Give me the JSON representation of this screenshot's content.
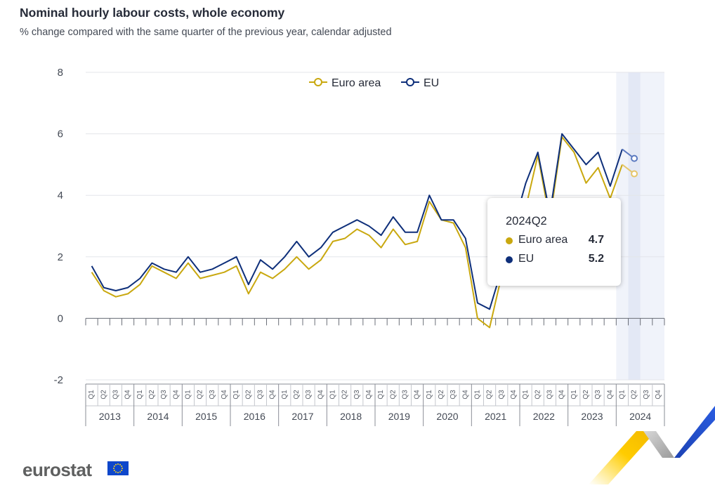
{
  "header": {
    "title": "Nominal hourly labour costs, whole economy",
    "subtitle": "% change compared with the same quarter of the previous year, calendar adjusted"
  },
  "colors": {
    "euro_area": "#c9a80f",
    "eu": "#0e2f7a",
    "highlight": "#e9edf7"
  },
  "chart_data": {
    "type": "line",
    "ylim": [
      -2,
      8
    ],
    "yticks": [
      8,
      6,
      4,
      2,
      0,
      -2
    ],
    "quarter_labels": [
      "Q1",
      "Q2",
      "Q3",
      "Q4"
    ],
    "years": [
      "2013",
      "2014",
      "2015",
      "2016",
      "2017",
      "2018",
      "2019",
      "2020",
      "2021",
      "2022",
      "2023",
      "2024"
    ],
    "highlight_year": "2024",
    "legend_position": "top-center",
    "series": [
      {
        "name": "Euro area",
        "values": [
          1.5,
          0.9,
          0.7,
          0.8,
          1.1,
          1.7,
          1.5,
          1.3,
          1.8,
          1.3,
          1.4,
          1.5,
          1.7,
          0.8,
          1.5,
          1.3,
          1.6,
          2.0,
          1.6,
          1.9,
          2.5,
          2.6,
          2.9,
          2.7,
          2.3,
          2.9,
          2.4,
          2.5,
          3.8,
          3.2,
          3.1,
          2.3,
          0.0,
          -0.3,
          1.4,
          2.7,
          3.6,
          5.3,
          3.2,
          5.9,
          5.4,
          4.4,
          4.9,
          3.9,
          5.0,
          4.7,
          null,
          null
        ]
      },
      {
        "name": "EU",
        "values": [
          1.7,
          1.0,
          0.9,
          1.0,
          1.3,
          1.8,
          1.6,
          1.5,
          2.0,
          1.5,
          1.6,
          1.8,
          2.0,
          1.1,
          1.9,
          1.6,
          2.0,
          2.5,
          2.0,
          2.3,
          2.8,
          3.0,
          3.2,
          3.0,
          2.7,
          3.3,
          2.8,
          2.8,
          4.0,
          3.2,
          3.2,
          2.6,
          0.5,
          0.3,
          1.6,
          3.0,
          4.4,
          5.4,
          3.4,
          6.0,
          5.5,
          5.0,
          5.4,
          4.3,
          5.5,
          5.2,
          null,
          null
        ]
      }
    ]
  },
  "tooltip": {
    "title": "2024Q2",
    "rows": [
      {
        "name": "Euro area",
        "value": "4.7"
      },
      {
        "name": "EU",
        "value": "5.2"
      }
    ]
  },
  "logo": {
    "text": "eurostat"
  }
}
